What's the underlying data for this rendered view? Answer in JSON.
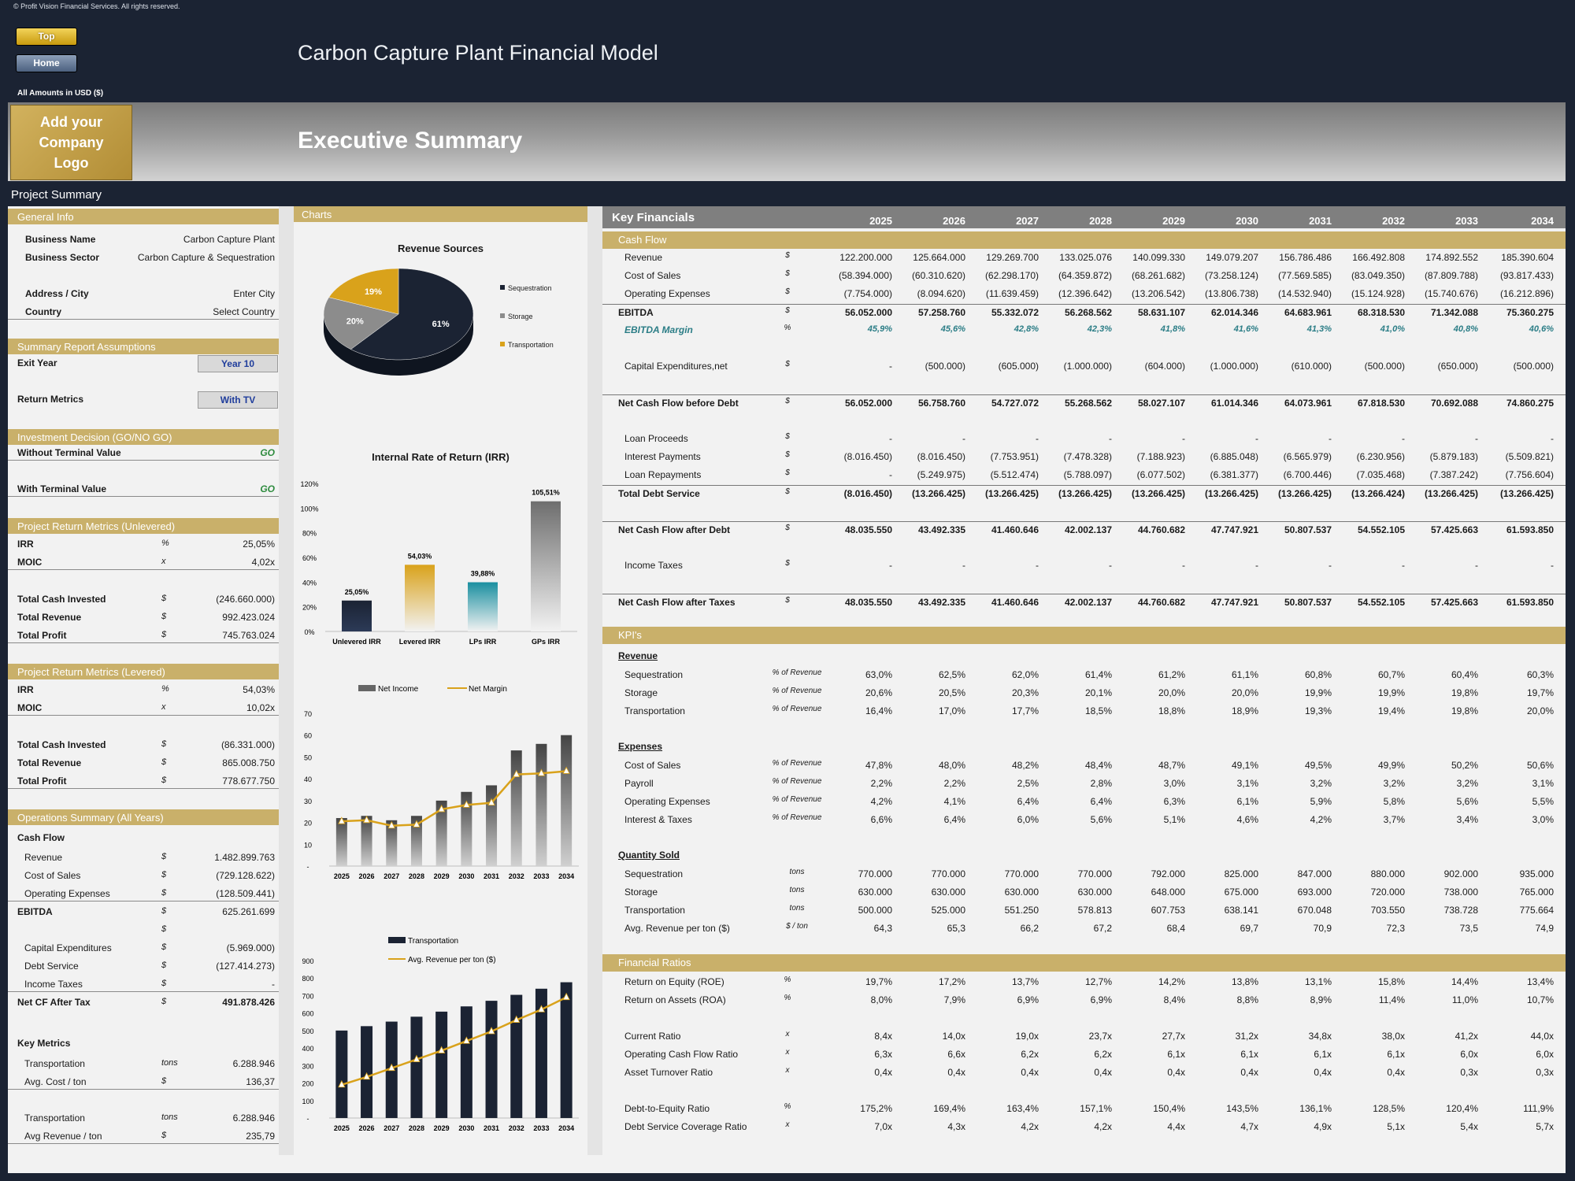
{
  "header": {
    "copyright": "© Profit Vision Financial Services. All rights reserved.",
    "top_button": "Top",
    "home_button": "Home",
    "model_title": "Carbon Capture Plant Financial Model",
    "amounts_label": "All Amounts in   USD ($)",
    "logo_text": "Add your Company Logo",
    "page_title": "Executive Summary",
    "project_summary": "Project Summary"
  },
  "general": {
    "title": "General Info",
    "rows": [
      {
        "label": "Business Name",
        "value": "Carbon Capture Plant"
      },
      {
        "label": "Business Sector",
        "value": "Carbon Capture & Sequestration"
      },
      {
        "label": "Address / City",
        "value": "Enter City"
      },
      {
        "label": "Country",
        "value": "Select Country"
      }
    ]
  },
  "assumptions": {
    "title": "Summary  Report Assumptions",
    "exit_year_label": "Exit Year",
    "exit_year_value": "Year 10",
    "return_metrics_label": "Return Metrics",
    "return_metrics_value": "With TV"
  },
  "decision": {
    "title": "Investment Decision (GO/NO GO)",
    "without_label": "Without Terminal Value",
    "without_value": "GO",
    "with_label": "With Terminal Value",
    "with_value": "GO"
  },
  "unlevered": {
    "title": "Project Return Metrics (Unlevered)",
    "irr_label": "IRR",
    "irr_unit": "%",
    "irr": "25,05%",
    "moic_label": "MOIC",
    "moic_unit": "x",
    "moic": "4,02x",
    "invested_label": "Total Cash Invested",
    "invested": "(246.660.000)",
    "revenue_label": "Total Revenue",
    "revenue": "992.423.024",
    "profit_label": "Total Profit",
    "profit": "745.763.024",
    "cur": "$"
  },
  "levered": {
    "title": "Project Return Metrics (Levered)",
    "irr_label": "IRR",
    "irr_unit": "%",
    "irr": "54,03%",
    "moic_label": "MOIC",
    "moic_unit": "x",
    "moic": "10,02x",
    "invested_label": "Total Cash Invested",
    "invested": "(86.331.000)",
    "revenue_label": "Total Revenue",
    "revenue": "865.008.750",
    "profit_label": "Total Profit",
    "profit": "778.677.750",
    "cur": "$"
  },
  "operations": {
    "title": "Operations Summary (All Years)",
    "cash_flow": "Cash Flow",
    "revenue_label": "Revenue",
    "revenue": "1.482.899.763",
    "cos_label": "Cost of Sales",
    "cos": "(729.128.622)",
    "opex_label": "Operating Expenses",
    "opex": "(128.509.441)",
    "ebitda_label": "EBITDA",
    "ebitda": "625.261.699",
    "capex_label": "Capital Expenditures",
    "capex": "(5.969.000)",
    "debt_label": "Debt Service",
    "debt": "(127.414.273)",
    "tax_label": "Income Taxes",
    "tax": "-",
    "netcf_label": "Net CF After Tax",
    "netcf": "491.878.426",
    "cur": "$",
    "key_metrics": "Key Metrics",
    "t1_label": "Transportation",
    "t1_unit": "tons",
    "t1": "6.288.946",
    "cost_label": "Avg. Cost / ton",
    "cost": "136,37",
    "t2_label": "Transportation",
    "t2_unit": "tons",
    "t2": "6.288.946",
    "rev_label": "Avg Revenue / ton",
    "rev": "235,79"
  },
  "charts_title": "Charts",
  "chart_data": [
    {
      "type": "pie",
      "title": "Revenue Sources",
      "labels": [
        "Sequestration",
        "Storage",
        "Transportation"
      ],
      "values": [
        61,
        20,
        19
      ],
      "colors": [
        "#1b2333",
        "#8c8c8c",
        "#d9a21b"
      ]
    },
    {
      "type": "bar",
      "title": "Internal Rate of Return (IRR)",
      "categories": [
        "Unlevered IRR",
        "Levered IRR",
        "LPs IRR",
        "GPs IRR"
      ],
      "values": [
        25.05,
        54.03,
        39.88,
        105.51
      ],
      "labels": [
        "25,05%",
        "54,03%",
        "39,88%",
        "105,51%"
      ],
      "yticks": [
        "0%",
        "20%",
        "40%",
        "60%",
        "80%",
        "100%",
        "120%"
      ],
      "ylim": [
        0,
        120
      ],
      "colors": [
        "#1b2333",
        "#d9a21b",
        "#1a8fa0",
        "#6e6e6e"
      ]
    },
    {
      "type": "bar",
      "title": "",
      "categories": [
        "2025",
        "2026",
        "2027",
        "2028",
        "2029",
        "2030",
        "2031",
        "2032",
        "2033",
        "2034"
      ],
      "series": [
        {
          "name": "Net Income",
          "values": [
            22,
            23,
            21,
            23,
            30,
            34,
            37,
            53,
            56,
            60
          ]
        },
        {
          "name": "Net Margin",
          "values": [
            20.5,
            21,
            18.5,
            19,
            26,
            28,
            29,
            42,
            42.5,
            43.5
          ]
        }
      ],
      "yticks": [
        "-",
        "10",
        "20",
        "30",
        "40",
        "50",
        "60",
        "70"
      ],
      "ylim": [
        0,
        70
      ]
    },
    {
      "type": "bar",
      "title": "",
      "categories": [
        "2025",
        "2026",
        "2027",
        "2028",
        "2029",
        "2030",
        "2031",
        "2032",
        "2033",
        "2034"
      ],
      "series": [
        {
          "name": "Transportation",
          "values": [
            500,
            525,
            551,
            579,
            608,
            638,
            670,
            704,
            739,
            776
          ]
        },
        {
          "name": "Avg. Revenue per ton ($)",
          "values": [
            190,
            235,
            285,
            335,
            385,
            440,
            495,
            560,
            620,
            690
          ]
        }
      ],
      "yticks": [
        "-",
        "100",
        "200",
        "300",
        "400",
        "500",
        "600",
        "700",
        "800",
        "900"
      ],
      "ylim": [
        0,
        900
      ]
    }
  ],
  "key_financials": {
    "title": "Key Financials",
    "years": [
      "2025",
      "2026",
      "2027",
      "2028",
      "2029",
      "2030",
      "2031",
      "2032",
      "2033",
      "2034"
    ],
    "cash_flow_title": "Cash Flow",
    "rows": [
      {
        "label": "Revenue",
        "unit": "$",
        "vals": [
          "122.200.000",
          "125.664.000",
          "129.269.700",
          "133.025.076",
          "140.099.330",
          "149.079.207",
          "156.786.486",
          "166.492.808",
          "174.892.552",
          "185.390.604"
        ]
      },
      {
        "label": "Cost of Sales",
        "unit": "$",
        "vals": [
          "(58.394.000)",
          "(60.310.620)",
          "(62.298.170)",
          "(64.359.872)",
          "(68.261.682)",
          "(73.258.124)",
          "(77.569.585)",
          "(83.049.350)",
          "(87.809.788)",
          "(93.817.433)"
        ]
      },
      {
        "label": "Operating Expenses",
        "unit": "$",
        "vals": [
          "(7.754.000)",
          "(8.094.620)",
          "(11.639.459)",
          "(12.396.642)",
          "(13.206.542)",
          "(13.806.738)",
          "(14.532.940)",
          "(15.124.928)",
          "(15.740.676)",
          "(16.212.896)"
        ]
      },
      {
        "label": "EBITDA",
        "unit": "$",
        "vals": [
          "56.052.000",
          "57.258.760",
          "55.332.072",
          "56.268.562",
          "58.631.107",
          "62.014.346",
          "64.683.961",
          "68.318.530",
          "71.342.088",
          "75.360.275"
        ]
      },
      {
        "label": "EBITDA Margin",
        "unit": "%",
        "vals": [
          "45,9%",
          "45,6%",
          "42,8%",
          "42,3%",
          "41,8%",
          "41,6%",
          "41,3%",
          "41,0%",
          "40,8%",
          "40,6%"
        ]
      },
      {
        "label": "Capital Expenditures,net",
        "unit": "$",
        "vals": [
          "-",
          "(500.000)",
          "(605.000)",
          "(1.000.000)",
          "(604.000)",
          "(1.000.000)",
          "(610.000)",
          "(500.000)",
          "(650.000)",
          "(500.000)"
        ]
      },
      {
        "label": "Net Cash Flow before Debt",
        "unit": "$",
        "vals": [
          "56.052.000",
          "56.758.760",
          "54.727.072",
          "55.268.562",
          "58.027.107",
          "61.014.346",
          "64.073.961",
          "67.818.530",
          "70.692.088",
          "74.860.275"
        ]
      },
      {
        "label": "Loan Proceeds",
        "unit": "$",
        "vals": [
          "-",
          "-",
          "-",
          "-",
          "-",
          "-",
          "-",
          "-",
          "-",
          "-"
        ]
      },
      {
        "label": "Interest Payments",
        "unit": "$",
        "vals": [
          "(8.016.450)",
          "(8.016.450)",
          "(7.753.951)",
          "(7.478.328)",
          "(7.188.923)",
          "(6.885.048)",
          "(6.565.979)",
          "(6.230.956)",
          "(5.879.183)",
          "(5.509.821)"
        ]
      },
      {
        "label": "Loan Repayments",
        "unit": "$",
        "vals": [
          "-",
          "(5.249.975)",
          "(5.512.474)",
          "(5.788.097)",
          "(6.077.502)",
          "(6.381.377)",
          "(6.700.446)",
          "(7.035.468)",
          "(7.387.242)",
          "(7.756.604)"
        ]
      },
      {
        "label": "Total Debt Service",
        "unit": "$",
        "vals": [
          "(8.016.450)",
          "(13.266.425)",
          "(13.266.425)",
          "(13.266.425)",
          "(13.266.425)",
          "(13.266.425)",
          "(13.266.425)",
          "(13.266.424)",
          "(13.266.425)",
          "(13.266.425)"
        ]
      },
      {
        "label": "Net Cash Flow after Debt",
        "unit": "$",
        "vals": [
          "48.035.550",
          "43.492.335",
          "41.460.646",
          "42.002.137",
          "44.760.682",
          "47.747.921",
          "50.807.537",
          "54.552.105",
          "57.425.663",
          "61.593.850"
        ]
      },
      {
        "label": "Income Taxes",
        "unit": "$",
        "vals": [
          "-",
          "-",
          "-",
          "-",
          "-",
          "-",
          "-",
          "-",
          "-",
          "-"
        ]
      },
      {
        "label": "Net Cash Flow after Taxes",
        "unit": "$",
        "vals": [
          "48.035.550",
          "43.492.335",
          "41.460.646",
          "42.002.137",
          "44.760.682",
          "47.747.921",
          "50.807.537",
          "54.552.105",
          "57.425.663",
          "61.593.850"
        ]
      }
    ],
    "kpi_title": "KPI's",
    "revenue_head": "Revenue",
    "revenue_rows": [
      {
        "label": "Sequestration",
        "unit": "% of Revenue",
        "vals": [
          "63,0%",
          "62,5%",
          "62,0%",
          "61,4%",
          "61,2%",
          "61,1%",
          "60,8%",
          "60,7%",
          "60,4%",
          "60,3%"
        ]
      },
      {
        "label": "Storage",
        "unit": "% of Revenue",
        "vals": [
          "20,6%",
          "20,5%",
          "20,3%",
          "20,1%",
          "20,0%",
          "20,0%",
          "19,9%",
          "19,9%",
          "19,8%",
          "19,7%"
        ]
      },
      {
        "label": "Transportation",
        "unit": "% of Revenue",
        "vals": [
          "16,4%",
          "17,0%",
          "17,7%",
          "18,5%",
          "18,8%",
          "18,9%",
          "19,3%",
          "19,4%",
          "19,8%",
          "20,0%"
        ]
      }
    ],
    "expenses_head": "Expenses",
    "expense_rows": [
      {
        "label": "Cost of Sales",
        "unit": "% of Revenue",
        "vals": [
          "47,8%",
          "48,0%",
          "48,2%",
          "48,4%",
          "48,7%",
          "49,1%",
          "49,5%",
          "49,9%",
          "50,2%",
          "50,6%"
        ]
      },
      {
        "label": "Payroll",
        "unit": "% of Revenue",
        "vals": [
          "2,2%",
          "2,2%",
          "2,5%",
          "2,8%",
          "3,0%",
          "3,1%",
          "3,2%",
          "3,2%",
          "3,2%",
          "3,1%"
        ]
      },
      {
        "label": "Operating Expenses",
        "unit": "% of Revenue",
        "vals": [
          "4,2%",
          "4,1%",
          "6,4%",
          "6,4%",
          "6,3%",
          "6,1%",
          "5,9%",
          "5,8%",
          "5,6%",
          "5,5%"
        ]
      },
      {
        "label": "Interest & Taxes",
        "unit": "% of Revenue",
        "vals": [
          "6,6%",
          "6,4%",
          "6,0%",
          "5,6%",
          "5,1%",
          "4,6%",
          "4,2%",
          "3,7%",
          "3,4%",
          "3,0%"
        ]
      }
    ],
    "qty_head": "Quantity Sold",
    "qty_rows": [
      {
        "label": "Sequestration",
        "unit": "tons",
        "vals": [
          "770.000",
          "770.000",
          "770.000",
          "770.000",
          "792.000",
          "825.000",
          "847.000",
          "880.000",
          "902.000",
          "935.000"
        ]
      },
      {
        "label": "Storage",
        "unit": "tons",
        "vals": [
          "630.000",
          "630.000",
          "630.000",
          "630.000",
          "648.000",
          "675.000",
          "693.000",
          "720.000",
          "738.000",
          "765.000"
        ]
      },
      {
        "label": "Transportation",
        "unit": "tons",
        "vals": [
          "500.000",
          "525.000",
          "551.250",
          "578.813",
          "607.753",
          "638.141",
          "670.048",
          "703.550",
          "738.728",
          "775.664"
        ]
      },
      {
        "label": "Avg. Revenue per ton ($)",
        "unit": "$ / ton",
        "vals": [
          "64,3",
          "65,3",
          "66,2",
          "67,2",
          "68,4",
          "69,7",
          "70,9",
          "72,3",
          "73,5",
          "74,9"
        ]
      }
    ],
    "ratios_title": "Financial Ratios",
    "ratio_rows": [
      {
        "label": "Return on Equity (ROE)",
        "unit": "%",
        "vals": [
          "19,7%",
          "17,2%",
          "13,7%",
          "12,7%",
          "14,2%",
          "13,8%",
          "13,1%",
          "15,8%",
          "14,4%",
          "13,4%"
        ]
      },
      {
        "label": "Return on Assets (ROA)",
        "unit": "%",
        "vals": [
          "8,0%",
          "7,9%",
          "6,9%",
          "6,9%",
          "8,4%",
          "8,8%",
          "8,9%",
          "11,4%",
          "11,0%",
          "10,7%"
        ]
      },
      {
        "label": "Current Ratio",
        "unit": "x",
        "vals": [
          "8,4x",
          "14,0x",
          "19,0x",
          "23,7x",
          "27,7x",
          "31,2x",
          "34,8x",
          "38,0x",
          "41,2x",
          "44,0x"
        ]
      },
      {
        "label": "Operating Cash Flow Ratio",
        "unit": "x",
        "vals": [
          "6,3x",
          "6,6x",
          "6,2x",
          "6,2x",
          "6,1x",
          "6,1x",
          "6,1x",
          "6,1x",
          "6,0x",
          "6,0x"
        ]
      },
      {
        "label": "Asset Turnover Ratio",
        "unit": "x",
        "vals": [
          "0,4x",
          "0,4x",
          "0,4x",
          "0,4x",
          "0,4x",
          "0,4x",
          "0,4x",
          "0,4x",
          "0,3x",
          "0,3x"
        ]
      },
      {
        "label": "Debt-to-Equity Ratio",
        "unit": "%",
        "vals": [
          "175,2%",
          "169,4%",
          "163,4%",
          "157,1%",
          "150,4%",
          "143,5%",
          "136,1%",
          "128,5%",
          "120,4%",
          "111,9%"
        ]
      },
      {
        "label": "Debt Service Coverage Ratio",
        "unit": "x",
        "vals": [
          "7,0x",
          "4,3x",
          "4,2x",
          "4,2x",
          "4,4x",
          "4,7x",
          "4,9x",
          "5,1x",
          "5,4x",
          "5,7x"
        ]
      }
    ]
  }
}
